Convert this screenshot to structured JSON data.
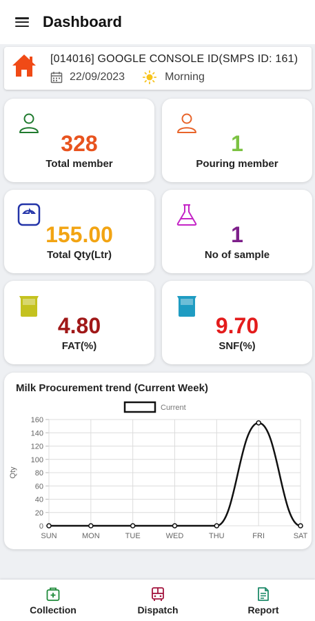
{
  "app": {
    "title": "Dashboard"
  },
  "info": {
    "society": "[014016] GOOGLE CONSOLE ID(SMPS ID: 161)",
    "date": "22/09/2023",
    "shift": "Morning"
  },
  "stats": [
    {
      "value": "328",
      "label": "Total member",
      "color": "#e8531e",
      "icon": "person-icon"
    },
    {
      "value": "1",
      "label": "Pouring member",
      "color": "#7cc242",
      "icon": "person-icon"
    },
    {
      "value": "155.00",
      "label": "Total Qty(Ltr)",
      "color": "#f2a413",
      "icon": "scale-icon"
    },
    {
      "value": "1",
      "label": "No of sample",
      "color": "#7d1f8a",
      "icon": "flask-icon"
    },
    {
      "value": "4.80",
      "label": "FAT(%)",
      "color": "#a01818",
      "icon": "beaker-icon"
    },
    {
      "value": "9.70",
      "label": "SNF(%)",
      "color": "#e31c1c",
      "icon": "beaker-icon"
    }
  ],
  "chart": {
    "title": "Milk Procurement trend (Current Week)"
  },
  "chart_data": {
    "type": "line",
    "title": "Milk Procurement trend (Current Week)",
    "categories": [
      "SUN",
      "MON",
      "TUE",
      "WED",
      "THU",
      "FRI",
      "SAT"
    ],
    "series": [
      {
        "name": "Current",
        "values": [
          0,
          0,
          0,
          0,
          0,
          155,
          0
        ]
      }
    ],
    "ylabel": "Qty",
    "xlabel": "",
    "ylim": [
      0,
      160
    ],
    "yticks": [
      0,
      20,
      40,
      60,
      80,
      100,
      120,
      140,
      160
    ],
    "grid": true,
    "legend": "top-center",
    "smooth": true
  },
  "nav": [
    {
      "label": "Collection",
      "color": "#1f8a3a",
      "icon": "collection-icon"
    },
    {
      "label": "Dispatch",
      "color": "#a3133c",
      "icon": "truck-icon"
    },
    {
      "label": "Report",
      "color": "#1f8a6a",
      "icon": "report-icon"
    }
  ]
}
